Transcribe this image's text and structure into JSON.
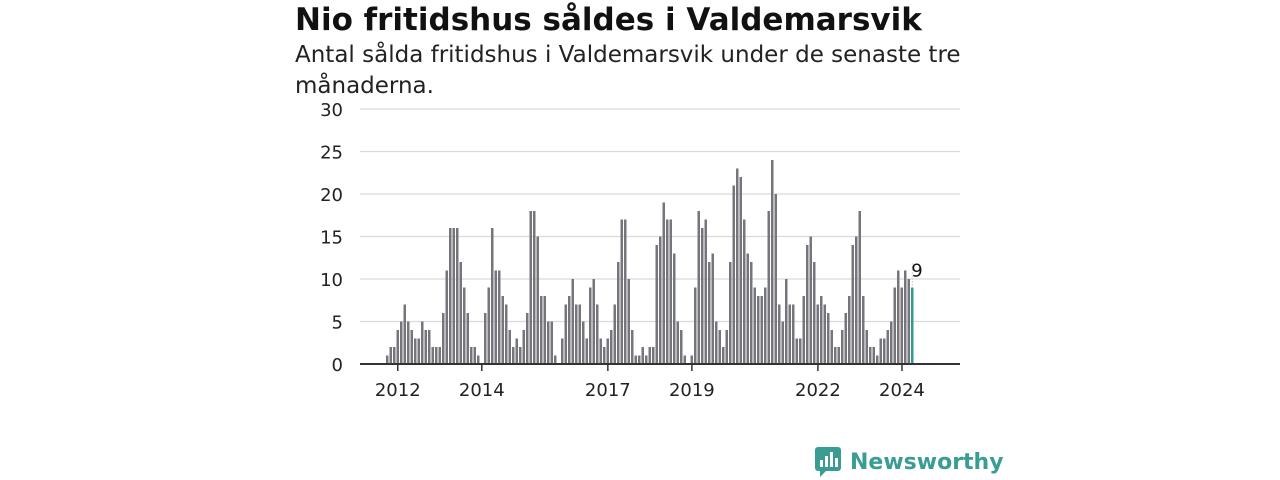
{
  "title": "Nio fritidshus såldes i Valdemarsvik",
  "subtitle": "Antal sålda fritidshus i Valdemarsvik under de senaste tre månaderna.",
  "brand": {
    "name": "Newsworthy"
  },
  "colors": {
    "bar": "#76757c",
    "highlight": "#2a9d8f",
    "grid": "#d9d9d9",
    "axis": "#333333",
    "brand": "#3a9d94"
  },
  "chart_data": {
    "type": "bar",
    "ylim": [
      0,
      30
    ],
    "yticks": [
      0,
      5,
      10,
      15,
      20,
      25,
      30
    ],
    "x_start": 2011.75,
    "x_step": 0.0833,
    "xticks": [
      {
        "label": "2012",
        "year": 2012.0
      },
      {
        "label": "2014",
        "year": 2014.0
      },
      {
        "label": "2017",
        "year": 2017.0
      },
      {
        "label": "2019",
        "year": 2019.0
      },
      {
        "label": "2022",
        "year": 2022.0
      },
      {
        "label": "2024",
        "year": 2024.0
      }
    ],
    "values": [
      1,
      2,
      2,
      4,
      5,
      7,
      5,
      4,
      3,
      3,
      5,
      4,
      4,
      2,
      2,
      2,
      6,
      11,
      16,
      16,
      16,
      12,
      9,
      6,
      2,
      2,
      1,
      0,
      6,
      9,
      16,
      11,
      11,
      8,
      7,
      4,
      2,
      3,
      2,
      4,
      6,
      18,
      18,
      15,
      8,
      8,
      5,
      5,
      1,
      0,
      3,
      7,
      8,
      10,
      7,
      7,
      5,
      3,
      9,
      10,
      7,
      3,
      2,
      3,
      4,
      7,
      12,
      17,
      17,
      10,
      4,
      1,
      1,
      2,
      1,
      2,
      2,
      14,
      15,
      19,
      17,
      17,
      13,
      5,
      4,
      1,
      0,
      1,
      9,
      18,
      16,
      17,
      12,
      13,
      5,
      4,
      2,
      4,
      12,
      21,
      23,
      22,
      17,
      13,
      12,
      9,
      8,
      8,
      9,
      18,
      24,
      20,
      7,
      5,
      10,
      7,
      7,
      3,
      3,
      8,
      14,
      15,
      12,
      7,
      8,
      7,
      6,
      4,
      2,
      2,
      4,
      6,
      8,
      14,
      15,
      18,
      8,
      4,
      2,
      2,
      1,
      3,
      3,
      4,
      5,
      9,
      11,
      9,
      11,
      10,
      9
    ],
    "highlight_last": true,
    "last_label": "9"
  }
}
